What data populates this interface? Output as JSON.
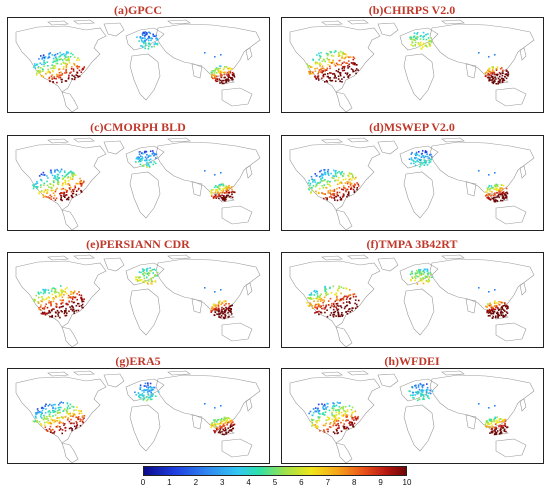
{
  "panels": [
    {
      "id": "a",
      "title": "(a)GPCC",
      "style": "cool"
    },
    {
      "id": "b",
      "title": "(b)CHIRPS V2.0",
      "style": "warm"
    },
    {
      "id": "c",
      "title": "(c)CMORPH BLD",
      "style": "cool"
    },
    {
      "id": "d",
      "title": "(d)MSWEP V2.0",
      "style": "cool"
    },
    {
      "id": "e",
      "title": "(e)PERSIANN CDR",
      "style": "warm"
    },
    {
      "id": "f",
      "title": "(f)TMPA 3B42RT",
      "style": "warm"
    },
    {
      "id": "g",
      "title": "(g)ERA5",
      "style": "cool"
    },
    {
      "id": "h",
      "title": "(h)WFDEI",
      "style": "cool"
    }
  ],
  "colorbar": {
    "ticks": [
      "0",
      "1",
      "2",
      "3",
      "4",
      "5",
      "6",
      "7",
      "8",
      "9",
      "10"
    ],
    "colors": [
      "#0a0a8c",
      "#1f3fe0",
      "#2f86f0",
      "#32c8f2",
      "#2fe1a8",
      "#9fe14a",
      "#f0e51a",
      "#f6a31a",
      "#e9501a",
      "#b3150f",
      "#6e0606"
    ]
  }
}
